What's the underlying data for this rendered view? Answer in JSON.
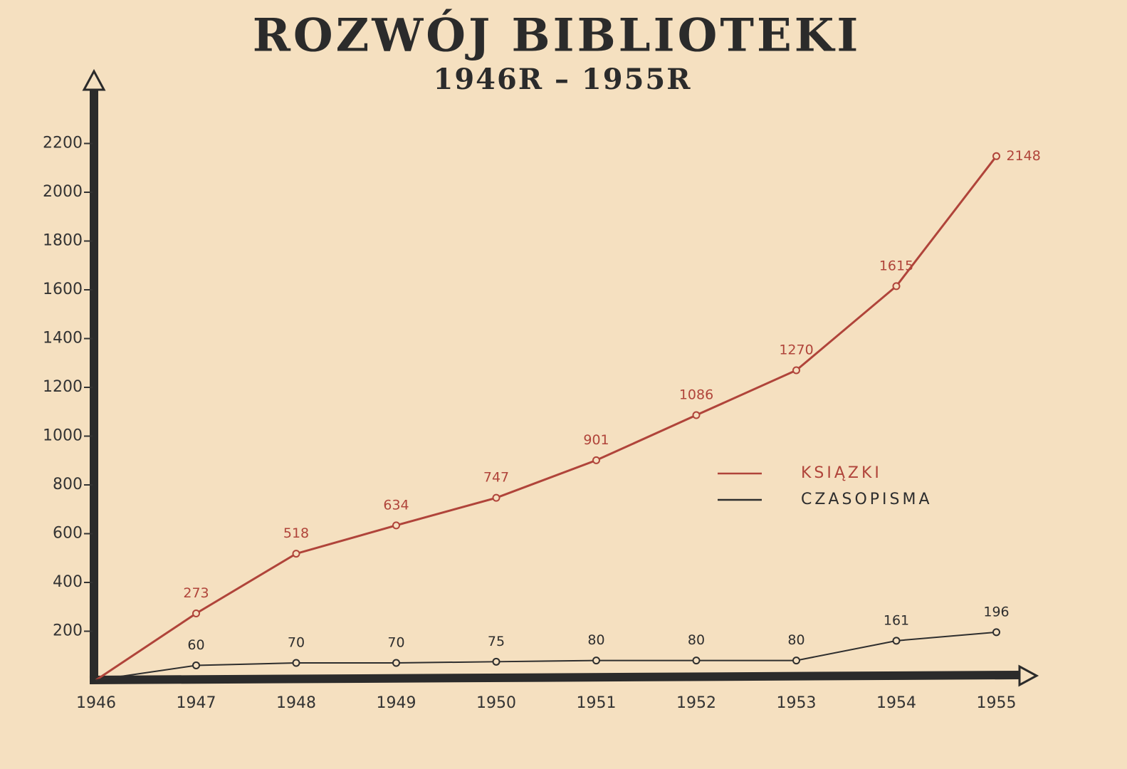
{
  "chart_data": {
    "type": "line",
    "title": "ROZWÓJ BIBLIOTEKI",
    "subtitle": "1946R – 1955R",
    "categories": [
      "1946",
      "1947",
      "1948",
      "1949",
      "1950",
      "1951",
      "1952",
      "1953",
      "1954",
      "1955"
    ],
    "series": [
      {
        "name": "KSIĄZKI",
        "color": "#b0443a",
        "values": [
          0,
          273,
          518,
          634,
          747,
          901,
          1086,
          1270,
          1615,
          2148
        ],
        "value_labels": [
          null,
          "273",
          "518",
          "634",
          "747",
          "901",
          "1086",
          "1270",
          "1615",
          "2148"
        ]
      },
      {
        "name": "CZASOPISMA",
        "color": "#2e2e2e",
        "values": [
          0,
          60,
          70,
          70,
          75,
          80,
          80,
          80,
          161,
          196
        ],
        "value_labels": [
          null,
          "60",
          "70",
          "70",
          "75",
          "80",
          "80",
          "80",
          "161",
          "196"
        ]
      }
    ],
    "ylim": [
      0,
      2400
    ],
    "yticks": [
      200,
      400,
      600,
      800,
      1000,
      1200,
      1400,
      1600,
      1800,
      2000,
      2200
    ],
    "legend": "right"
  }
}
